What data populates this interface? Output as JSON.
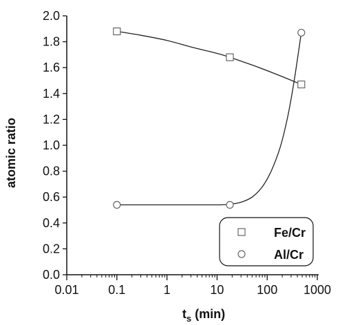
{
  "chart_data": {
    "type": "scatter",
    "xscale": "log",
    "xlim": [
      0.01,
      1000
    ],
    "ylim": [
      0.0,
      2.0
    ],
    "grid": false,
    "legend_position": "bottom-right",
    "xlabel_main": "t",
    "xlabel_sub": "s",
    "xlabel_rest": " (min)",
    "ylabel": "atomic ratio",
    "xticks": [
      "0.01",
      "0.1",
      "1",
      "10",
      "100",
      "1000"
    ],
    "xtick_values": [
      0.01,
      0.1,
      1,
      10,
      100,
      1000
    ],
    "yticks": [
      "0.0",
      "0.2",
      "0.4",
      "0.6",
      "0.8",
      "1.0",
      "1.2",
      "1.4",
      "1.6",
      "1.8",
      "2.0"
    ],
    "ytick_values": [
      0.0,
      0.2,
      0.4,
      0.6,
      0.8,
      1.0,
      1.2,
      1.4,
      1.6,
      1.8,
      2.0
    ],
    "series": [
      {
        "name": "Fe/Cr",
        "marker": "square",
        "x": [
          0.1,
          18,
          480
        ],
        "y": [
          1.88,
          1.68,
          1.47
        ],
        "fit": [
          [
            0.1,
            1.88
          ],
          [
            0.3,
            1.85
          ],
          [
            1,
            1.81
          ],
          [
            3,
            1.76
          ],
          [
            10,
            1.71
          ],
          [
            18,
            1.68
          ],
          [
            50,
            1.62
          ],
          [
            150,
            1.55
          ],
          [
            480,
            1.47
          ]
        ]
      },
      {
        "name": "Al/Cr",
        "marker": "circle",
        "x": [
          0.1,
          18,
          480
        ],
        "y": [
          0.54,
          0.54,
          1.87
        ],
        "fit": [
          [
            0.1,
            0.54
          ],
          [
            1,
            0.54
          ],
          [
            10,
            0.54
          ],
          [
            18,
            0.545
          ],
          [
            30,
            0.56
          ],
          [
            50,
            0.6
          ],
          [
            80,
            0.68
          ],
          [
            120,
            0.8
          ],
          [
            180,
            0.98
          ],
          [
            250,
            1.2
          ],
          [
            330,
            1.45
          ],
          [
            400,
            1.66
          ],
          [
            480,
            1.87
          ]
        ]
      }
    ]
  }
}
